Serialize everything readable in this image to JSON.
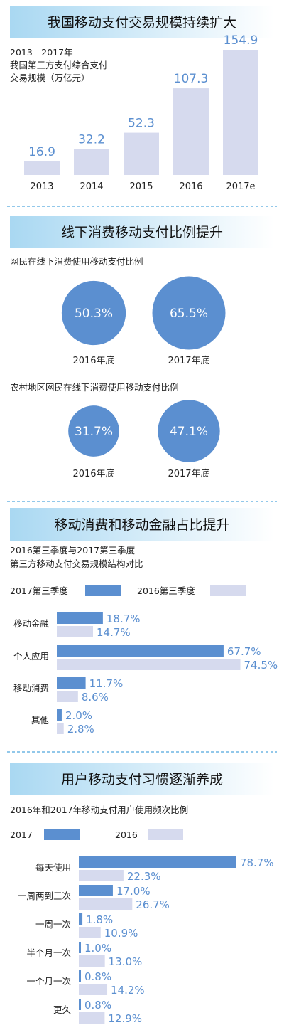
{
  "colors": {
    "banner_gradient_start": "#a9d8f2",
    "banner_gradient_end": "#ffffff",
    "bar_2017": "#5b8fd0",
    "bar_2016": "#d6daee",
    "value_blue": "#5b8fd0",
    "divider": "#6fb6e3"
  },
  "section1": {
    "title": "我国移动支付交易规模持续扩大",
    "subtitle_lines": [
      "2013—2017年",
      "我国第三方支付综合支付",
      "交易规模（万亿元）"
    ]
  },
  "section2": {
    "title": "线下消费移动支付比例提升",
    "group1_label": "网民在线下消费使用移动支付比例",
    "group2_label": "农村地区网民在线下消费使用移动支付比例"
  },
  "section3": {
    "title": "移动消费和移动金融占比提升",
    "subtitle_lines": [
      "2016第三季度与2017第三季度",
      "第三方移动支付交易规模结构对比"
    ],
    "legend": [
      "2017第三季度",
      "2016第三季度"
    ]
  },
  "section4": {
    "title": "用户移动支付习惯逐渐养成",
    "subtitle": "2016年和2017年移动支付用户使用频次比例",
    "legend": [
      "2017",
      "2016"
    ]
  },
  "chart_data": [
    {
      "type": "bar",
      "categories": [
        "2013",
        "2014",
        "2015",
        "2016",
        "2017e"
      ],
      "values": [
        16.9,
        32.2,
        52.3,
        107.3,
        154.9
      ],
      "value_labels": [
        "16.9",
        "32.2",
        "52.3",
        "107.3",
        "154.9"
      ]
    },
    {
      "type": "bubble",
      "items": [
        {
          "label": "2016年底",
          "value": 50.3,
          "text": "50.3%"
        },
        {
          "label": "2017年底",
          "value": 65.5,
          "text": "65.5%"
        }
      ]
    },
    {
      "type": "bubble",
      "items": [
        {
          "label": "2016年底",
          "value": 31.7,
          "text": "31.7%"
        },
        {
          "label": "2017年底",
          "value": 47.1,
          "text": "47.1%"
        }
      ]
    },
    {
      "type": "bar",
      "orientation": "horizontal",
      "categories": [
        "移动金融",
        "个人应用",
        "移动消费",
        "其他"
      ],
      "series": [
        {
          "name": "2017第三季度",
          "values": [
            18.7,
            67.7,
            11.7,
            2.0
          ],
          "labels": [
            "18.7%",
            "67.7%",
            "11.7%",
            "2.0%"
          ]
        },
        {
          "name": "2016第三季度",
          "values": [
            14.7,
            74.5,
            8.6,
            2.8
          ],
          "labels": [
            "14.7%",
            "74.5%",
            "8.6%",
            "2.8%"
          ]
        }
      ]
    },
    {
      "type": "bar",
      "orientation": "horizontal",
      "categories": [
        "每天使用",
        "一周两到三次",
        "一周一次",
        "半个月一次",
        "一个月一次",
        "更久"
      ],
      "series": [
        {
          "name": "2017",
          "values": [
            78.7,
            17.0,
            1.8,
            1.0,
            0.8,
            0.8
          ],
          "labels": [
            "78.7%",
            "17.0%",
            "1.8%",
            "1.0%",
            "0.8%",
            "0.8%"
          ]
        },
        {
          "name": "2016",
          "values": [
            22.3,
            26.7,
            10.9,
            13.0,
            14.2,
            12.9
          ],
          "labels": [
            "22.3%",
            "26.7%",
            "10.9%",
            "13.0%",
            "14.2%",
            "12.9%"
          ]
        }
      ]
    }
  ]
}
